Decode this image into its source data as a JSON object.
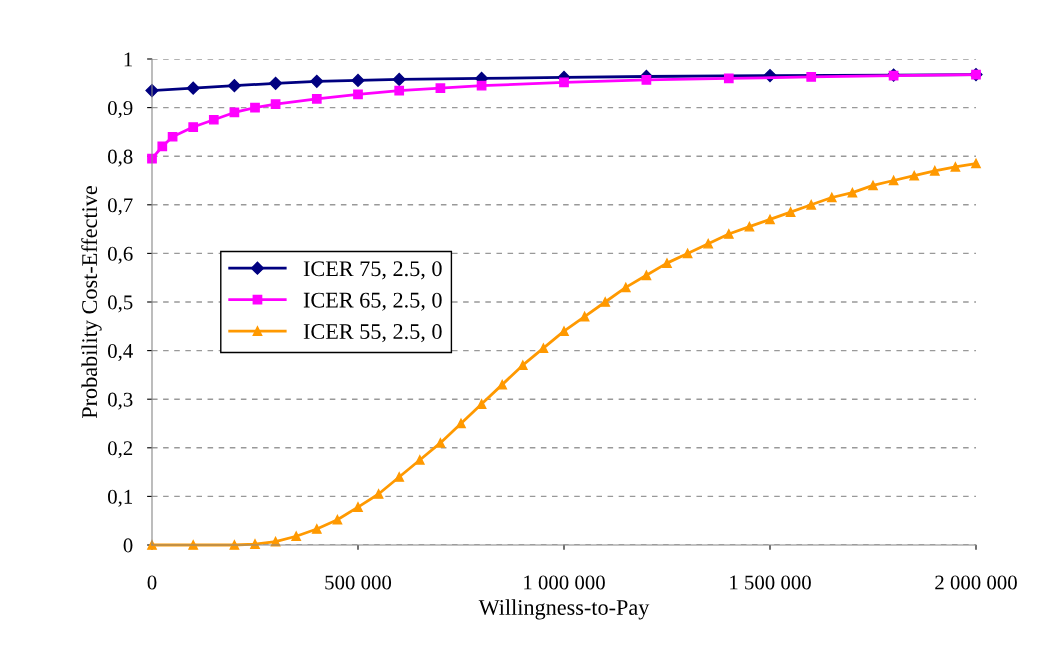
{
  "chart_data": {
    "type": "line",
    "xlabel": "Willingness-to-Pay",
    "ylabel": "Probability Cost-Effective",
    "series": [
      {
        "name": "ICER 75, 2.5, 0",
        "color": "#000080",
        "marker": "diamond",
        "x": [
          0,
          100000,
          200000,
          300000,
          400000,
          500000,
          600000,
          800000,
          1000000,
          1200000,
          1500000,
          1800000,
          2000000
        ],
        "values": [
          0.935,
          0.94,
          0.945,
          0.95,
          0.954,
          0.956,
          0.958,
          0.96,
          0.962,
          0.964,
          0.966,
          0.967,
          0.968
        ]
      },
      {
        "name": "ICER 65, 2.5, 0",
        "color": "#ff00ff",
        "marker": "square",
        "x": [
          0,
          25000,
          50000,
          100000,
          150000,
          200000,
          250000,
          300000,
          400000,
          500000,
          600000,
          700000,
          800000,
          1000000,
          1200000,
          1400000,
          1600000,
          1800000,
          2000000
        ],
        "values": [
          0.795,
          0.82,
          0.84,
          0.86,
          0.875,
          0.89,
          0.9,
          0.907,
          0.918,
          0.927,
          0.935,
          0.94,
          0.945,
          0.952,
          0.957,
          0.96,
          0.963,
          0.966,
          0.968
        ]
      },
      {
        "name": "ICER 55, 2.5, 0",
        "color": "#ff9900",
        "marker": "triangle",
        "x": [
          0,
          100000,
          200000,
          250000,
          300000,
          350000,
          400000,
          450000,
          500000,
          550000,
          600000,
          650000,
          700000,
          750000,
          800000,
          850000,
          900000,
          950000,
          1000000,
          1050000,
          1100000,
          1150000,
          1200000,
          1250000,
          1300000,
          1350000,
          1400000,
          1450000,
          1500000,
          1550000,
          1600000,
          1650000,
          1700000,
          1750000,
          1800000,
          1850000,
          1900000,
          1950000,
          2000000
        ],
        "values": [
          0,
          0,
          0,
          0.002,
          0.007,
          0.018,
          0.033,
          0.052,
          0.078,
          0.105,
          0.14,
          0.175,
          0.21,
          0.25,
          0.29,
          0.33,
          0.37,
          0.405,
          0.44,
          0.47,
          0.5,
          0.53,
          0.555,
          0.58,
          0.6,
          0.62,
          0.64,
          0.655,
          0.67,
          0.685,
          0.7,
          0.715,
          0.725,
          0.74,
          0.75,
          0.76,
          0.77,
          0.778,
          0.785
        ]
      }
    ],
    "xlim": [
      0,
      2000000
    ],
    "xticks": [
      {
        "value": 0,
        "label": "0"
      },
      {
        "value": 500000,
        "label": "500 000"
      },
      {
        "value": 1000000,
        "label": "1 000 000"
      },
      {
        "value": 1500000,
        "label": "1 500 000"
      },
      {
        "value": 2000000,
        "label": "2 000 000"
      }
    ],
    "ylim": [
      0,
      1
    ],
    "yticks": [
      {
        "value": 0,
        "label": "0"
      },
      {
        "value": 0.1,
        "label": "0,1"
      },
      {
        "value": 0.2,
        "label": "0,2"
      },
      {
        "value": 0.3,
        "label": "0,3"
      },
      {
        "value": 0.4,
        "label": "0,4"
      },
      {
        "value": 0.5,
        "label": "0,5"
      },
      {
        "value": 0.6,
        "label": "0,6"
      },
      {
        "value": 0.7,
        "label": "0,7"
      },
      {
        "value": 0.8,
        "label": "0,8"
      },
      {
        "value": 0.9,
        "label": "0,9"
      },
      {
        "value": 1,
        "label": "1"
      }
    ],
    "grid": "y",
    "legend": "left",
    "line_style": "solid"
  }
}
